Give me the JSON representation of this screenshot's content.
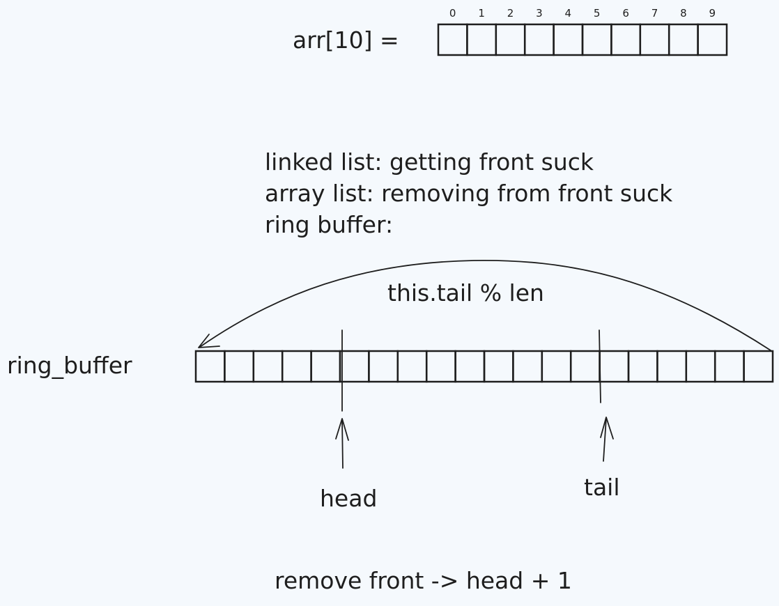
{
  "colors": {
    "background": "#f5f9fd",
    "ink": "#1e1e1e"
  },
  "array": {
    "label": "arr[10] =",
    "indices": [
      "0",
      "1",
      "2",
      "3",
      "4",
      "5",
      "6",
      "7",
      "8",
      "9"
    ]
  },
  "notes": [
    "linked list: getting front suck",
    "array list: removing from front suck",
    "ring buffer:"
  ],
  "ring": {
    "label": "ring_buffer",
    "wrap_label": "this.tail % len",
    "head_label": "head",
    "tail_label": "tail"
  },
  "footer": "remove front -> head + 1"
}
